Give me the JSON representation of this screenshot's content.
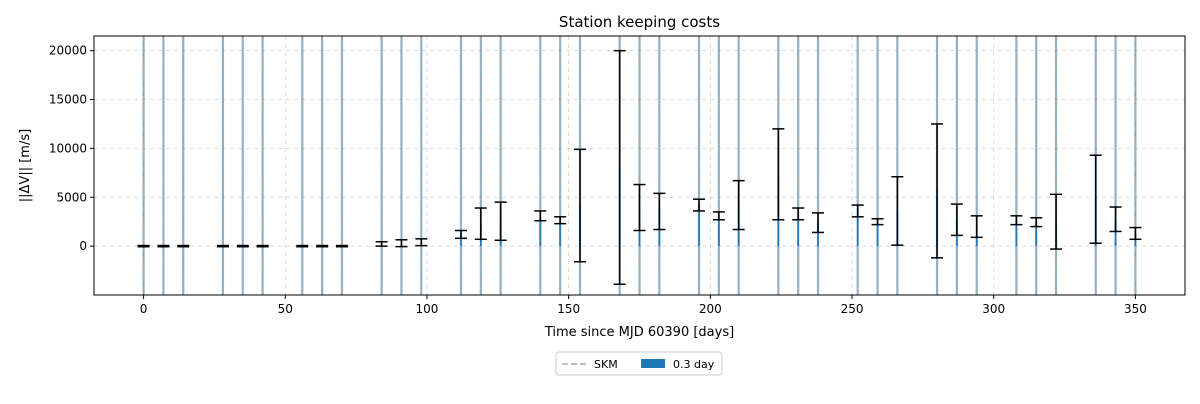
{
  "chart_data": {
    "type": "bar",
    "title": "Station keeping costs",
    "xlabel": "Time since MJD 60390 [days]",
    "ylabel": "||ΔV|| [m/s]",
    "xlim": [
      -17.5,
      367.5
    ],
    "ylim": [
      -5000,
      21500
    ],
    "x_ticks": [
      0,
      50,
      100,
      150,
      200,
      250,
      300,
      350
    ],
    "y_ticks": [
      0,
      5000,
      10000,
      15000,
      20000
    ],
    "grid": true,
    "legend_position": "below center",
    "legend": [
      {
        "label": "SKM",
        "style": "dashed-line",
        "color": "#aaaaaa"
      },
      {
        "label": "0.3 day",
        "style": "bar",
        "color": "#1f77b4"
      }
    ],
    "skm_days": [
      0,
      7,
      14,
      28,
      35,
      42,
      56,
      63,
      70,
      84,
      91,
      98,
      112,
      119,
      126,
      140,
      147,
      154,
      168,
      175,
      182,
      196,
      203,
      210,
      224,
      231,
      238,
      252,
      259,
      266,
      280,
      287,
      294,
      308,
      315,
      322,
      336,
      343,
      350
    ],
    "series": [
      {
        "name": "0.3 day",
        "color": "#1f77b4",
        "bar_width": 0.3,
        "points": [
          {
            "x": 0,
            "y": 0,
            "lo": -60,
            "hi": 60
          },
          {
            "x": 7,
            "y": 0,
            "lo": -60,
            "hi": 60
          },
          {
            "x": 14,
            "y": 0,
            "lo": -60,
            "hi": 60
          },
          {
            "x": 28,
            "y": 0,
            "lo": -60,
            "hi": 60
          },
          {
            "x": 35,
            "y": 0,
            "lo": -60,
            "hi": 60
          },
          {
            "x": 42,
            "y": 0,
            "lo": -60,
            "hi": 60
          },
          {
            "x": 56,
            "y": 0,
            "lo": -60,
            "hi": 60
          },
          {
            "x": 63,
            "y": 0,
            "lo": -60,
            "hi": 60
          },
          {
            "x": 70,
            "y": 0,
            "lo": -60,
            "hi": 60
          },
          {
            "x": 84,
            "y": 200,
            "lo": 0,
            "hi": 450
          },
          {
            "x": 91,
            "y": 300,
            "lo": -50,
            "hi": 650
          },
          {
            "x": 98,
            "y": 400,
            "lo": 50,
            "hi": 750
          },
          {
            "x": 112,
            "y": 1200,
            "lo": 800,
            "hi": 1600
          },
          {
            "x": 119,
            "y": 2200,
            "lo": 700,
            "hi": 3900
          },
          {
            "x": 126,
            "y": 2500,
            "lo": 600,
            "hi": 4500
          },
          {
            "x": 140,
            "y": 3100,
            "lo": 2600,
            "hi": 3600
          },
          {
            "x": 147,
            "y": 2600,
            "lo": 2300,
            "hi": 3000
          },
          {
            "x": 154,
            "y": 4200,
            "lo": -1600,
            "hi": 9900
          },
          {
            "x": 168,
            "y": 8000,
            "lo": -3900,
            "hi": 20000
          },
          {
            "x": 175,
            "y": 3900,
            "lo": 1600,
            "hi": 6300
          },
          {
            "x": 182,
            "y": 3500,
            "lo": 1700,
            "hi": 5400
          },
          {
            "x": 196,
            "y": 4200,
            "lo": 3600,
            "hi": 4800
          },
          {
            "x": 203,
            "y": 3100,
            "lo": 2700,
            "hi": 3500
          },
          {
            "x": 210,
            "y": 4200,
            "lo": 1700,
            "hi": 6700
          },
          {
            "x": 224,
            "y": 7300,
            "lo": 2700,
            "hi": 12000
          },
          {
            "x": 231,
            "y": 3300,
            "lo": 2700,
            "hi": 3900
          },
          {
            "x": 238,
            "y": 2400,
            "lo": 1400,
            "hi": 3400
          },
          {
            "x": 252,
            "y": 3600,
            "lo": 3000,
            "hi": 4200
          },
          {
            "x": 259,
            "y": 2500,
            "lo": 2200,
            "hi": 2800
          },
          {
            "x": 266,
            "y": 3600,
            "lo": 100,
            "hi": 7100
          },
          {
            "x": 280,
            "y": 5700,
            "lo": -1200,
            "hi": 12500
          },
          {
            "x": 287,
            "y": 2700,
            "lo": 1100,
            "hi": 4300
          },
          {
            "x": 294,
            "y": 2000,
            "lo": 900,
            "hi": 3100
          },
          {
            "x": 308,
            "y": 2600,
            "lo": 2200,
            "hi": 3100
          },
          {
            "x": 315,
            "y": 2400,
            "lo": 2000,
            "hi": 2900
          },
          {
            "x": 322,
            "y": 2500,
            "lo": -300,
            "hi": 5300
          },
          {
            "x": 336,
            "y": 4800,
            "lo": 300,
            "hi": 9300
          },
          {
            "x": 343,
            "y": 2700,
            "lo": 1500,
            "hi": 4000
          },
          {
            "x": 350,
            "y": 1300,
            "lo": 700,
            "hi": 1900
          }
        ]
      }
    ]
  }
}
